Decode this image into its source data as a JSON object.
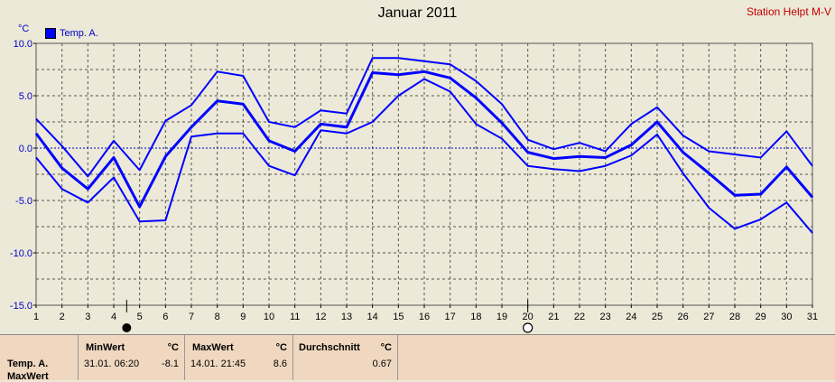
{
  "header": {
    "title": "Januar 2011",
    "station": "Station Helpt M-V",
    "unit": "°C",
    "legend_label": "Temp. A."
  },
  "colors": {
    "series": "#0000ff",
    "grid": "#555555",
    "zero_line": "#0000c8",
    "background": "#ece9d8",
    "table_bg": "#f0d8c0"
  },
  "chart_data": {
    "type": "line",
    "title": "Januar 2011",
    "xlabel": "",
    "ylabel": "°C",
    "x": [
      1,
      2,
      3,
      4,
      5,
      6,
      7,
      8,
      9,
      10,
      11,
      12,
      13,
      14,
      15,
      16,
      17,
      18,
      19,
      20,
      21,
      22,
      23,
      24,
      25,
      26,
      27,
      28,
      29,
      30,
      31
    ],
    "ylim": [
      -15,
      10
    ],
    "yticks": [
      "10.0",
      "5.0",
      "0.0",
      "-5.0",
      "-10.0",
      "-15.0"
    ],
    "grid": true,
    "legend": "top-left",
    "series": [
      {
        "name": "Temp. A.",
        "role": "max",
        "values": [
          2.8,
          0.2,
          -2.7,
          0.7,
          -2.1,
          2.6,
          4.1,
          7.3,
          6.9,
          2.5,
          2.0,
          3.6,
          3.3,
          8.6,
          8.6,
          8.3,
          8.0,
          6.4,
          4.2,
          0.8,
          -0.1,
          0.5,
          -0.3,
          2.3,
          3.9,
          1.2,
          -0.3,
          -0.6,
          -0.9,
          1.6,
          -1.7
        ]
      },
      {
        "name": "Temp. A.",
        "role": "avg",
        "values": [
          1.4,
          -1.9,
          -3.9,
          -0.9,
          -5.6,
          -0.8,
          2.0,
          4.5,
          4.2,
          0.7,
          -0.3,
          2.3,
          2.0,
          7.2,
          7.0,
          7.3,
          6.7,
          4.8,
          2.4,
          -0.4,
          -1.0,
          -0.8,
          -0.9,
          0.3,
          2.5,
          -0.4,
          -2.4,
          -4.5,
          -4.4,
          -1.8,
          -4.7
        ]
      },
      {
        "name": "Temp. A.",
        "role": "min",
        "values": [
          -0.9,
          -3.9,
          -5.2,
          -2.8,
          -7.0,
          -6.9,
          1.1,
          1.4,
          1.4,
          -1.7,
          -2.6,
          1.7,
          1.4,
          2.5,
          5.0,
          6.6,
          5.4,
          2.3,
          0.9,
          -1.7,
          -2.0,
          -2.2,
          -1.7,
          -0.7,
          1.3,
          -2.4,
          -5.7,
          -7.7,
          -6.8,
          -5.2,
          -8.1
        ]
      }
    ],
    "markers": [
      {
        "x": 4.5,
        "kind": "new-moon"
      },
      {
        "x": 20,
        "kind": "full-moon"
      }
    ]
  },
  "table": {
    "row_label": "Temp. A.",
    "row_label2": "MaxWert",
    "min": {
      "header": "MinWert",
      "unit": "°C",
      "datetime": "31.01.  06:20",
      "value": "-8.1"
    },
    "max": {
      "header": "MaxWert",
      "unit": "°C",
      "datetime": "14.01.  21:45",
      "value": "8.6"
    },
    "avg": {
      "header": "Durchschnitt",
      "unit": "°C",
      "value": "0.67"
    }
  }
}
